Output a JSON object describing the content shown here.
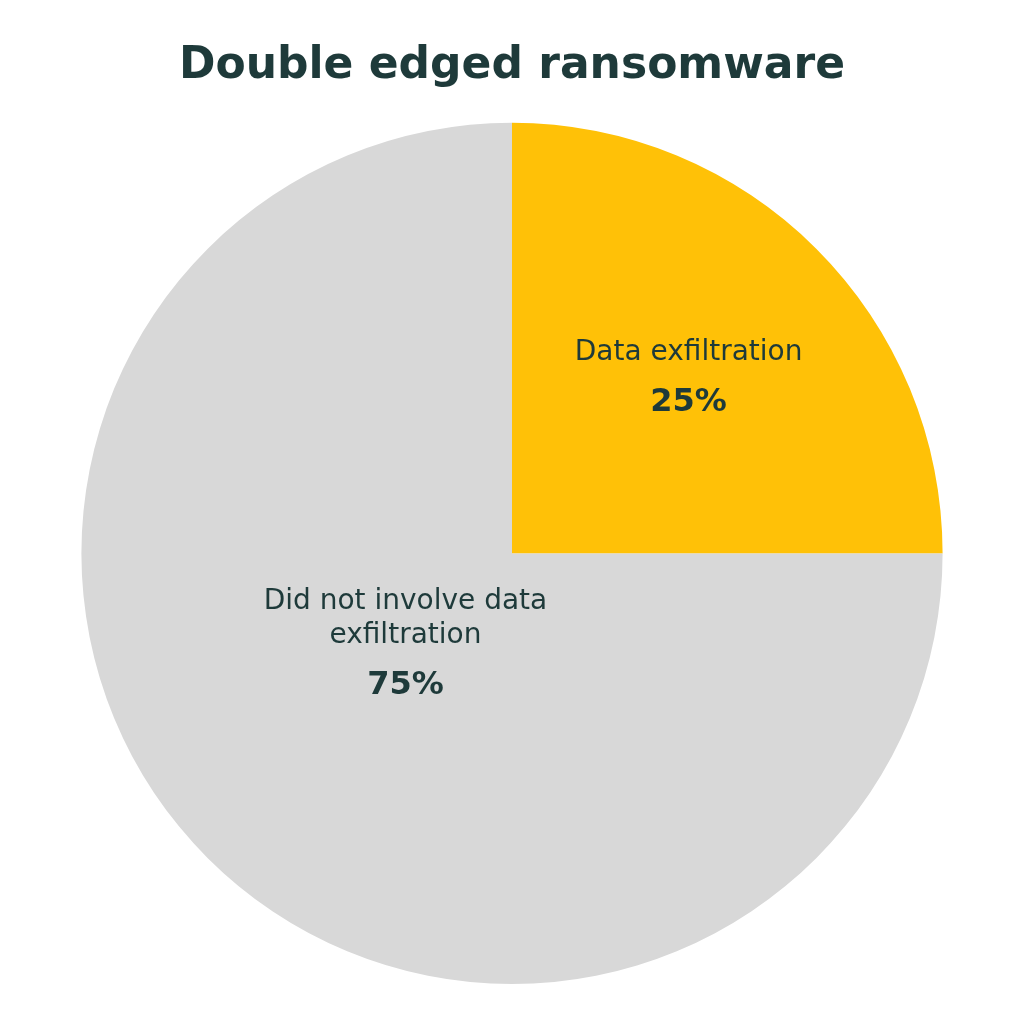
{
  "chart_data": {
    "type": "pie",
    "title": "Double edged ransomware",
    "categories": [
      "Data exfiltration",
      "Did not involve data\nexfiltration"
    ],
    "values": [
      25,
      75
    ],
    "value_labels": [
      "25%",
      "75%"
    ],
    "colors": [
      "#FFC107",
      "#D8D8D8"
    ],
    "data_labels": true,
    "legend": false
  }
}
